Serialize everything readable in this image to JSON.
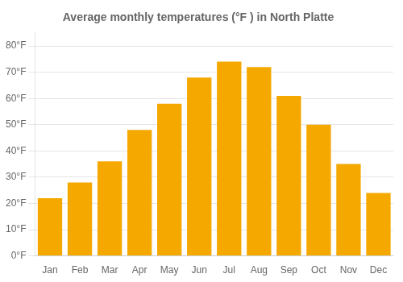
{
  "chart_data": {
    "type": "bar",
    "title": "Average monthly temperatures (°F ) in North Platte",
    "categories": [
      "Jan",
      "Feb",
      "Mar",
      "Apr",
      "May",
      "Jun",
      "Jul",
      "Aug",
      "Sep",
      "Oct",
      "Nov",
      "Dec"
    ],
    "values": [
      22,
      28,
      36,
      48,
      58,
      68,
      74,
      72,
      61,
      50,
      35,
      24
    ],
    "color": "#F5A800",
    "ylim": [
      0,
      85
    ],
    "yticks": [
      {
        "value": 0,
        "label": "0°F"
      },
      {
        "value": 10,
        "label": "10°F"
      },
      {
        "value": 20,
        "label": "20°F"
      },
      {
        "value": 30,
        "label": "30°F"
      },
      {
        "value": 40,
        "label": "40°F"
      },
      {
        "value": 50,
        "label": "50°F"
      },
      {
        "value": 60,
        "label": "60°F"
      },
      {
        "value": 70,
        "label": "70°F"
      },
      {
        "value": 80,
        "label": "80°F"
      }
    ],
    "grid": true
  }
}
